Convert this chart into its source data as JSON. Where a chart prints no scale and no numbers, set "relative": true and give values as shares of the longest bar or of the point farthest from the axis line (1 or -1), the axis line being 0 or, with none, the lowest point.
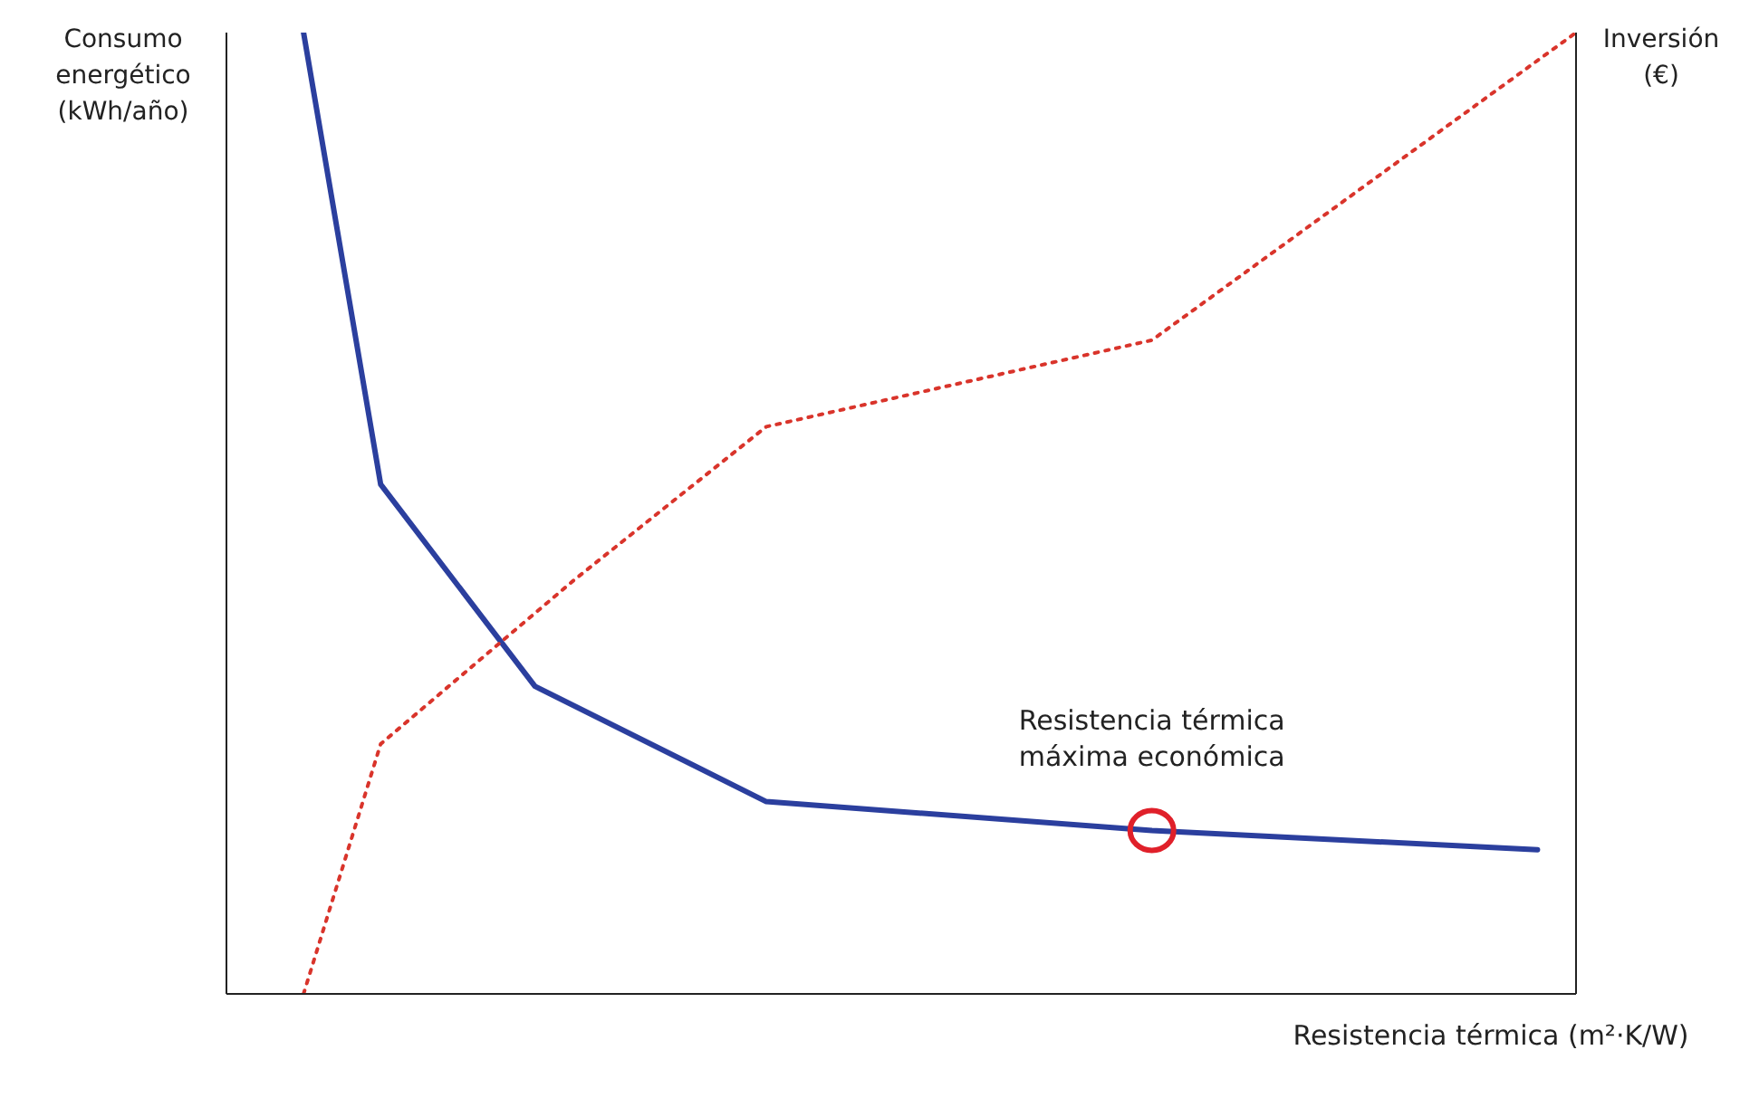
{
  "chart_data": {
    "type": "line",
    "relative": true,
    "xlabel": "Resistencia térmica (m²·K/W)",
    "ylabel": "Consumo energético (kWh/año)",
    "y2label": "Inversión (€)",
    "categories": [
      null,
      null,
      null,
      null,
      null,
      null,
      null,
      null,
      null,
      null,
      null,
      null,
      null,
      null,
      null,
      null,
      null,
      null,
      null,
      null,
      null,
      null,
      null,
      null,
      null,
      null,
      null,
      null,
      null,
      null,
      null,
      null,
      null,
      null,
      null,
      null
    ],
    "series": [
      {
        "color": "#2b3f9e",
        "line_style": "solid",
        "values": [
          null,
          null,
          1,
          null,
          0.53,
          null,
          null,
          null,
          0.32,
          null,
          null,
          null,
          null,
          null,
          0.2,
          null,
          null,
          null,
          null,
          null,
          null,
          null,
          null,
          null,
          0.17,
          null,
          null,
          null,
          null,
          null,
          null,
          null,
          null,
          null,
          0.15,
          null
        ]
      },
      {
        "color": "#d9342b",
        "line_style": "dotted",
        "values": [
          null,
          null,
          0,
          null,
          0.26,
          null,
          null,
          null,
          null,
          0.43,
          null,
          null,
          null,
          null,
          0.59,
          null,
          null,
          null,
          null,
          null,
          null,
          null,
          null,
          null,
          0.68,
          null,
          null,
          null,
          null,
          null,
          null,
          null,
          null,
          null,
          null,
          1
        ]
      }
    ],
    "annotations": [
      {
        "text": "Resistencia térmica máxima económica",
        "y": 0.17
      }
    ],
    "marker": "none"
  }
}
